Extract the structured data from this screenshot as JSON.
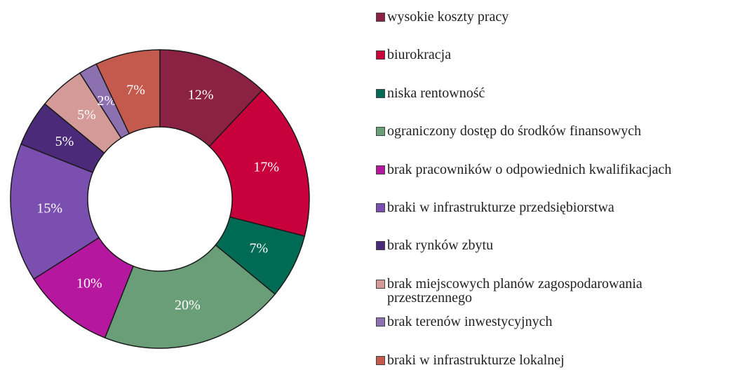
{
  "chart_data": {
    "type": "donut",
    "categories": [
      "wysokie koszty pracy",
      "biurokracja",
      "niska rentowność",
      "ograniczony dostęp do środków finansowych",
      "brak pracowników o odpowiednich kwalifikacjach",
      "braki w infrastrukturze przedsiębiorstwa",
      "brak rynków zbytu",
      "brak miejscowych planów zagospodarowania przestrzennego",
      "brak terenów inwestycyjnych",
      "braki w infrastrukturze lokalnej"
    ],
    "values": [
      12,
      17,
      7,
      20,
      10,
      15,
      5,
      5,
      2,
      7
    ],
    "value_labels": [
      "12%",
      "17%",
      "7%",
      "20%",
      "10%",
      "15%",
      "5%",
      "5%",
      "2%",
      "7%"
    ],
    "colors": [
      "#8b2243",
      "#c8003c",
      "#006b54",
      "#6a9e78",
      "#b5179e",
      "#7b4fb0",
      "#4b2a7a",
      "#d49a98",
      "#8d70b0",
      "#c45a4e"
    ],
    "legend": "right"
  }
}
